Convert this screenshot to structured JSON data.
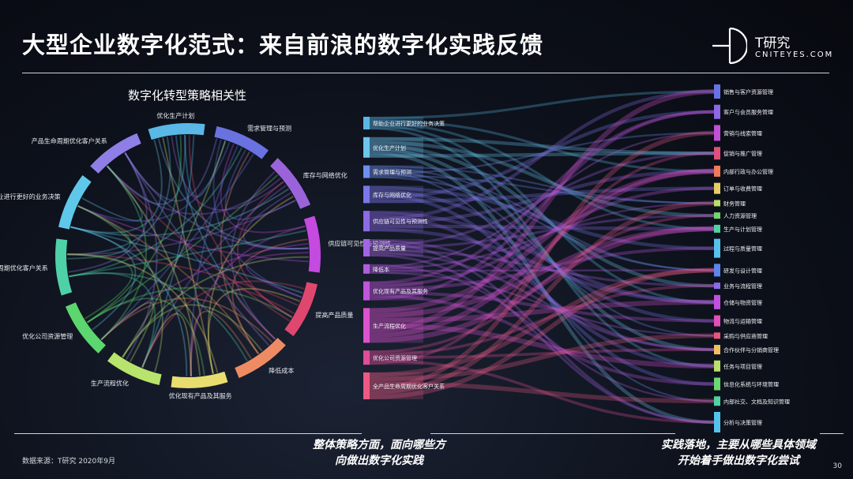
{
  "header": {
    "title": "大型企业数字化范式：来自前浪的数字化实践反馈",
    "logo_text": "T研究",
    "logo_sub": "CNITEYES.COM"
  },
  "chart_data": [
    {
      "type": "chord",
      "title": "数字化转型策略相关性",
      "segments": [
        {
          "label": "优化生产计划",
          "color": "#5ab8e6"
        },
        {
          "label": "需求管理与预测",
          "color": "#6a72e0"
        },
        {
          "label": "库存与网络优化",
          "color": "#9b63d9"
        },
        {
          "label": "供应链可见性与预测性",
          "color": "#c44ae0"
        },
        {
          "label": "提高产品质量",
          "color": "#e0476f"
        },
        {
          "label": "降低成本",
          "color": "#ef8b63"
        },
        {
          "label": "优化现有产品及其服务",
          "color": "#e8de70"
        },
        {
          "label": "生产流程优化",
          "color": "#b8e36c"
        },
        {
          "label": "优化公司资源管理",
          "color": "#5cd66e"
        },
        {
          "label": "全产品生命周期优化客户关系",
          "color": "#4fd1a7"
        },
        {
          "label": "帮助企业进行更好的业务决策",
          "color": "#5fc8ea"
        },
        {
          "label": "产品生命周期优化客户关系",
          "color": "#8f7ee6"
        }
      ]
    },
    {
      "type": "sankey",
      "sources": [
        {
          "label": "帮助企业进行更好的业务决策",
          "color": "#5ab8e6"
        },
        {
          "label": "优化生产计划",
          "color": "#6cc6f0"
        },
        {
          "label": "需求管理与预测",
          "color": "#6f8ff0"
        },
        {
          "label": "库存与网络优化",
          "color": "#7a78ea"
        },
        {
          "label": "供应链可见性与预测性",
          "color": "#8c6be6"
        },
        {
          "label": "提高产品质量",
          "color": "#a564e3"
        },
        {
          "label": "降低本",
          "color": "#b25ce0"
        },
        {
          "label": "优化现有产品及其服务",
          "color": "#c255dd"
        },
        {
          "label": "生产流程优化",
          "color": "#dc52cf"
        },
        {
          "label": "优化公司资源管理",
          "color": "#e04e9a"
        },
        {
          "label": "全产品生命周期优化客户关系",
          "color": "#ec5a84"
        }
      ],
      "targets": [
        {
          "label": "销售与客户资源管理",
          "color": "#6872e8"
        },
        {
          "label": "客户与会员服务管理",
          "color": "#8a68e6"
        },
        {
          "label": "营销与线索管理",
          "color": "#c150d6"
        },
        {
          "label": "促销与推广管理",
          "color": "#e04f7a"
        },
        {
          "label": "内部行政与办公管理",
          "color": "#ef7a55"
        },
        {
          "label": "订单与收费管理",
          "color": "#e6cf62"
        },
        {
          "label": "财务管理",
          "color": "#b8e06a"
        },
        {
          "label": "人力资源管理",
          "color": "#6fd86a"
        },
        {
          "label": "生产与计划管理",
          "color": "#4fd3a0"
        },
        {
          "label": "过程与质量管理",
          "color": "#55c2ec"
        },
        {
          "label": "研发与设计管理",
          "color": "#5a86ec"
        },
        {
          "label": "业务与流程管理",
          "color": "#8a6ae8"
        },
        {
          "label": "仓储与物资管理",
          "color": "#c150e0"
        },
        {
          "label": "物流与运输管理",
          "color": "#e050b8"
        },
        {
          "label": "采购与供应商管理",
          "color": "#e9567c"
        },
        {
          "label": "合作伙伴与分销商管理",
          "color": "#f0c060"
        },
        {
          "label": "任务与项目管理",
          "color": "#b8e06a"
        },
        {
          "label": "信息化系统与环境管理",
          "color": "#6cd870"
        },
        {
          "label": "内部社交、文档及知识管理",
          "color": "#4fd3a0"
        },
        {
          "label": "分析与决策管理",
          "color": "#55c2ec"
        }
      ]
    }
  ],
  "footer": {
    "caption_left": [
      "整体策略方面，面向哪些方",
      "向做出数字化实践"
    ],
    "caption_right": [
      "实践落地，主要从哪些具体领域",
      "开始着手做出数字化尝试"
    ],
    "source": "数据来源：T研究 2020年9月",
    "page": "30"
  }
}
